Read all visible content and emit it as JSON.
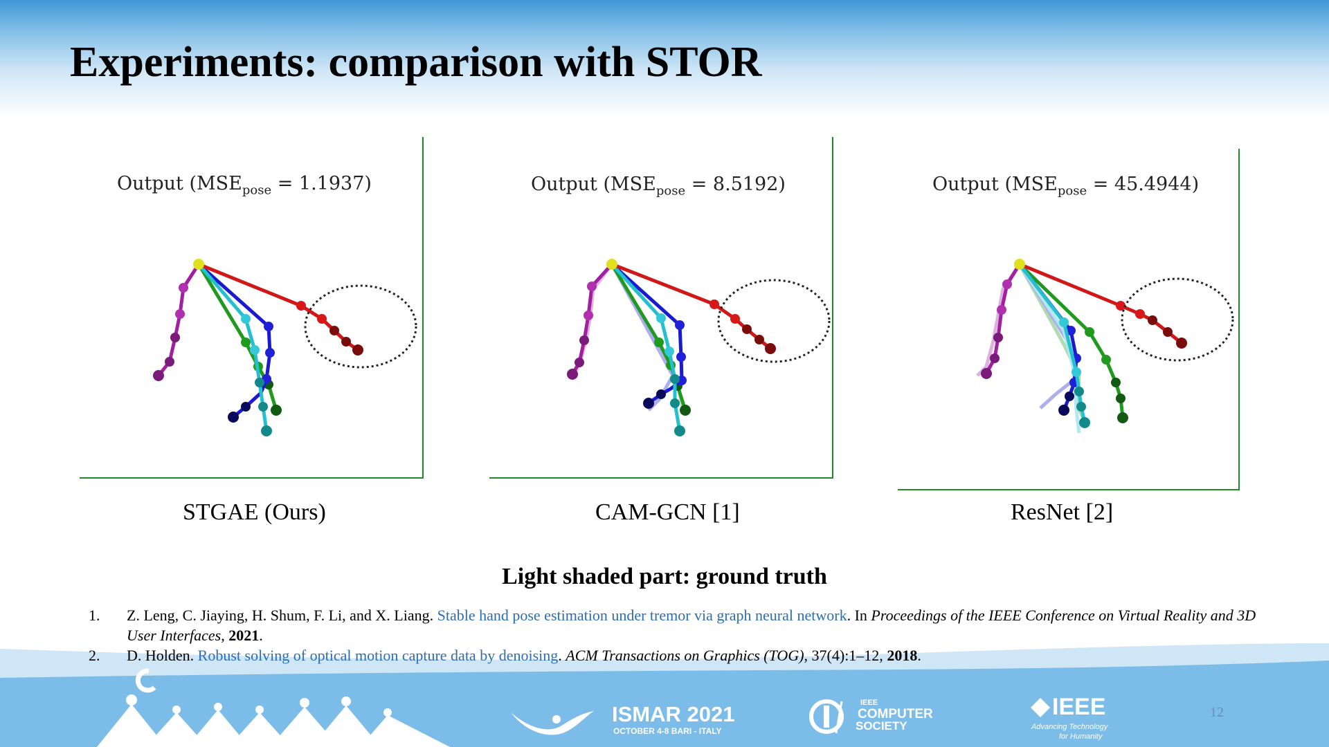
{
  "slide": {
    "title": "Experiments: comparison with STOR",
    "panels": [
      {
        "output_label": "Output",
        "mse_prefix": "(MSE",
        "mse_sub": "pose",
        "mse_value": " = 1.1937)",
        "caption": "STGAE (Ours)"
      },
      {
        "output_label": "Output",
        "mse_prefix": "(MSE",
        "mse_sub": "pose",
        "mse_value": " = 8.5192)",
        "caption": "CAM-GCN [1]"
      },
      {
        "output_label": "Output",
        "mse_prefix": "(MSE",
        "mse_sub": "pose",
        "mse_value": " = 45.4944)",
        "caption": "ResNet [2]"
      }
    ],
    "note": "Light shaded part: ground truth",
    "references": [
      {
        "num": "1.",
        "authors": "Z. Leng, C. Jiaying, H. Shum, F. Li, and X. Liang. ",
        "link": "Stable hand pose estimation under tremor via graph neural network",
        "after_link": ". In ",
        "venue": "Proceedings of the IEEE Conference on Virtual Reality and 3D User Interfaces",
        "sep": ", ",
        "year": "2021",
        "end": "."
      },
      {
        "num": "2.",
        "authors": "D. Holden. ",
        "link": "Robust solving of optical motion capture data by denoising",
        "after_link": ". ",
        "venue": "ACM Transactions on Graphics (TOG)",
        "sep": ", 37(4):1–12, ",
        "year": "2018",
        "end": "."
      }
    ],
    "footer": {
      "ismar_title": "ISMAR 2021",
      "ismar_sub": "OCTOBER 4-8 BARI - ITALY",
      "cs_ieee": "IEEE",
      "cs_line1": "COMPUTER",
      "cs_line2": "SOCIETY",
      "ieee_logo": "IEEE",
      "ieee_tag1": "Advancing Technology",
      "ieee_tag2": "for Humanity",
      "page_number": "12"
    },
    "colors": {
      "axis": "#1e8a2a",
      "link": "#2a6db5",
      "band": "#5aa8e0"
    }
  }
}
